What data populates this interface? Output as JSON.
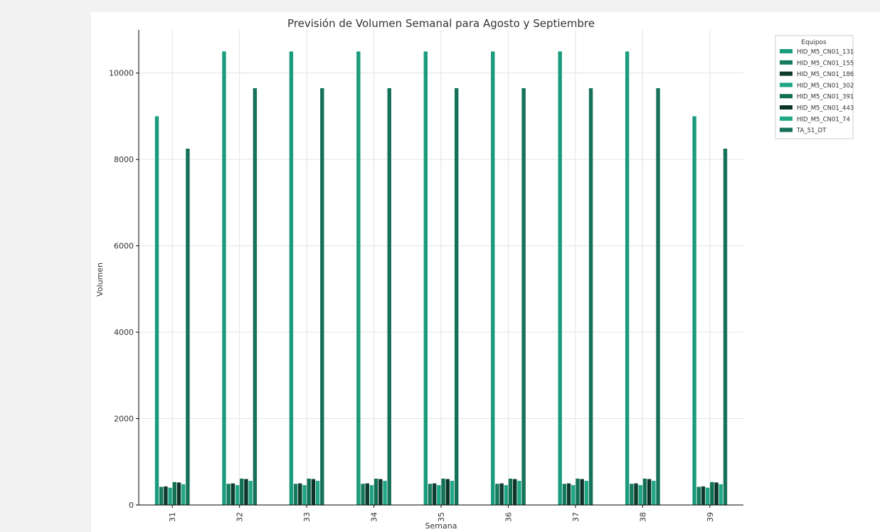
{
  "chart_data": {
    "type": "bar",
    "title": "Previsión de Volumen Semanal para Agosto y Septiembre",
    "xlabel": "Semana",
    "ylabel": "Volumen",
    "ylim": [
      0,
      11000
    ],
    "yticks": [
      0,
      2000,
      4000,
      6000,
      8000,
      10000
    ],
    "grid": true,
    "legend_title": "Equipos",
    "legend_position": "top-right (outside plot)",
    "categories": [
      "31",
      "32",
      "33",
      "34",
      "35",
      "36",
      "37",
      "38",
      "39"
    ],
    "series": [
      {
        "name": "HID_M5_CN01_131",
        "color": "#1a9c7c",
        "values": [
          9000,
          10500,
          10500,
          10500,
          10500,
          10500,
          10500,
          10500,
          9000
        ]
      },
      {
        "name": "HID_M5_CN01_155",
        "color": "#167a5e",
        "values": [
          420,
          490,
          490,
          490,
          490,
          490,
          490,
          490,
          420
        ]
      },
      {
        "name": "HID_M5_CN01_186",
        "color": "#0d3b2e",
        "values": [
          430,
          500,
          500,
          500,
          500,
          500,
          500,
          500,
          430
        ]
      },
      {
        "name": "HID_M5_CN01_302",
        "color": "#1fa584",
        "values": [
          400,
          460,
          460,
          460,
          460,
          460,
          460,
          460,
          400
        ]
      },
      {
        "name": "HID_M5_CN01_391",
        "color": "#127055",
        "values": [
          530,
          610,
          610,
          610,
          610,
          610,
          610,
          610,
          530
        ]
      },
      {
        "name": "HID_M5_CN01_443",
        "color": "#0b3327",
        "values": [
          520,
          600,
          600,
          600,
          600,
          600,
          600,
          600,
          520
        ]
      },
      {
        "name": "HID_M5_CN01_74",
        "color": "#22a886",
        "values": [
          480,
          560,
          560,
          560,
          560,
          560,
          560,
          560,
          480
        ]
      },
      {
        "name": "TA_51_DT",
        "color": "#157259",
        "values": [
          8250,
          9650,
          9650,
          9650,
          9650,
          9650,
          9650,
          9650,
          8250
        ]
      }
    ]
  }
}
